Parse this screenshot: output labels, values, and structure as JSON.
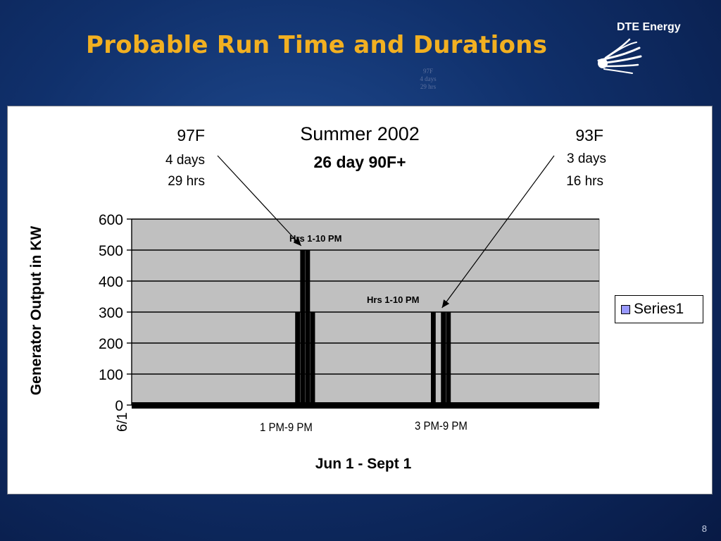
{
  "slide": {
    "title": "Probable Run Time and Durations",
    "brand": "DTE Energy",
    "page_number": "8",
    "faint_text": [
      "97F",
      "4 days",
      "29 hrs"
    ]
  },
  "colors": {
    "title": "#f2b021",
    "background": "#10306b",
    "plot_area": "#c0c0c0",
    "bars": "#000000",
    "legend_swatch": "#9999ff"
  },
  "chart_data": {
    "type": "bar",
    "title": "Summer 2002",
    "subtitle": "26 day 90F+",
    "xlabel": "Jun 1 - Sept 1",
    "ylabel": "Generator Output in KW",
    "ylim": [
      0,
      600
    ],
    "yticks": [
      0,
      100,
      200,
      300,
      400,
      500,
      600
    ],
    "grid": true,
    "legend": {
      "placement": "right",
      "entries": [
        "Series1"
      ]
    },
    "first_category_label": "6/1",
    "day_count": 93,
    "series": [
      {
        "name": "Series1",
        "points": [
          {
            "day": 33,
            "value": 300
          },
          {
            "day": 34,
            "value": 500
          },
          {
            "day": 35,
            "value": 500
          },
          {
            "day": 36,
            "value": 300
          },
          {
            "day": 60,
            "value": 300
          },
          {
            "day": 62,
            "value": 300
          },
          {
            "day": 63,
            "value": 300
          }
        ]
      }
    ],
    "category_annotations": [
      {
        "text": "1 PM-9 PM",
        "day": 33
      },
      {
        "text": "3 PM-9 PM",
        "day": 61
      }
    ],
    "bar_annotations": [
      {
        "text": "Hrs 1-10 PM",
        "day": 35,
        "value": 500
      },
      {
        "text": "Hrs 1-10 PM",
        "day": 56,
        "value": 300
      }
    ],
    "callouts": [
      {
        "heading": "97F",
        "line1": "4 days",
        "line2": "29 hrs",
        "target_day": 34,
        "target_value": 500
      },
      {
        "heading": "93F",
        "line1": "3 days",
        "line2": "16 hrs",
        "target_day": 62,
        "target_value": 300
      }
    ]
  }
}
